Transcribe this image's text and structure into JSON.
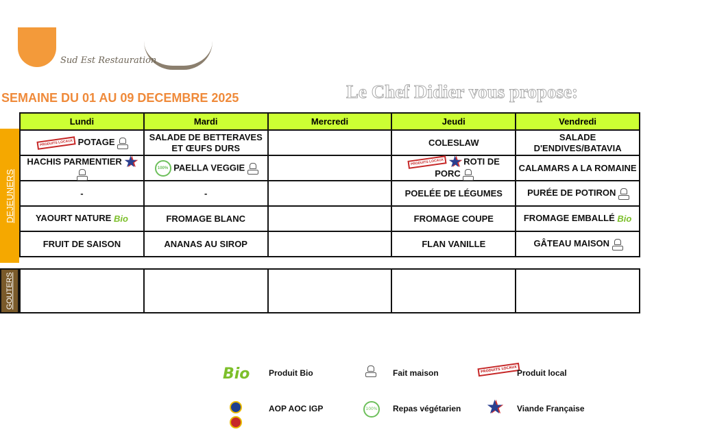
{
  "logo": {
    "text": "Sud Est Restauration"
  },
  "header": {
    "week": "SEMAINE DU  01 AU 09 DECEMBRE 2025",
    "chef_title": "Le Chef Didier vous propose:"
  },
  "days": [
    "Lundi",
    "Mardi",
    "Mercredi",
    "Jeudi",
    "Vendredi"
  ],
  "sections": {
    "dejeuners": "DEJEUNERS",
    "gouters": "GOUTERS"
  },
  "menu": [
    [
      {
        "text": "POTAGE",
        "icons": [
          "local",
          "chef"
        ]
      },
      {
        "text": "SALADE DE BETTERAVES ET ŒUFS DURS",
        "icons": []
      },
      {
        "text": "",
        "icons": []
      },
      {
        "text": "COLESLAW",
        "icons": []
      },
      {
        "text": "SALADE D'ENDIVES/BATAVIA",
        "icons": []
      }
    ],
    [
      {
        "text": "HACHIS PARMENTIER",
        "icons": [
          "star",
          "chef"
        ]
      },
      {
        "text": "PAELLA VEGGIE",
        "icons": [
          "veg",
          "chef"
        ]
      },
      {
        "text": "",
        "icons": []
      },
      {
        "text": "ROTI DE PORC",
        "icons": [
          "local",
          "star",
          "chef"
        ]
      },
      {
        "text": "CALAMARS A LA ROMAINE",
        "icons": []
      }
    ],
    [
      {
        "text": "-",
        "icons": []
      },
      {
        "text": "-",
        "icons": []
      },
      {
        "text": "",
        "icons": []
      },
      {
        "text": "POELÉE DE LÉGUMES",
        "icons": []
      },
      {
        "text": "PURÉE DE POTIRON",
        "icons": [
          "chef"
        ]
      }
    ],
    [
      {
        "text": "YAOURT NATURE",
        "icons": [
          "bio"
        ]
      },
      {
        "text": "FROMAGE BLANC",
        "icons": []
      },
      {
        "text": "",
        "icons": []
      },
      {
        "text": "FROMAGE COUPE",
        "icons": []
      },
      {
        "text": "FROMAGE EMBALLÉ",
        "icons": [
          "bio"
        ]
      }
    ],
    [
      {
        "text": "FRUIT DE SAISON",
        "icons": []
      },
      {
        "text": "ANANAS AU SIROP",
        "icons": []
      },
      {
        "text": "",
        "icons": []
      },
      {
        "text": "FLAN VANILLE",
        "icons": []
      },
      {
        "text": "GÂTEAU MAISON",
        "icons": [
          "chef"
        ]
      }
    ]
  ],
  "gouters": [
    "",
    "",
    "",
    "",
    ""
  ],
  "legend": [
    {
      "icon": "bio",
      "label": "Produit Bio"
    },
    {
      "icon": "chef",
      "label": "Fait maison"
    },
    {
      "icon": "local",
      "label": "Produit local"
    },
    {
      "icon": "aop",
      "label": "AOP  AOC IGP"
    },
    {
      "icon": "veg",
      "label": "Repas végétarien"
    },
    {
      "icon": "star",
      "label": "Viande Française"
    }
  ],
  "icon_text": {
    "local": "PRODUITS LOCAUX",
    "bio": "Bio",
    "veg": "100%"
  },
  "colors": {
    "header_bg": "#ccff33",
    "section_bg": "#f5a800",
    "week_title": "#ef8a3a"
  }
}
